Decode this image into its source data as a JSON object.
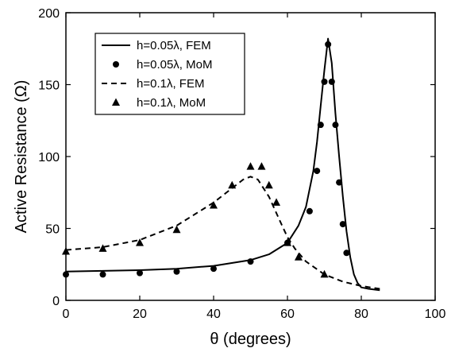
{
  "chart_data": {
    "type": "line",
    "title": "",
    "xlabel": "θ (degrees)",
    "ylabel": "Active Resistance (Ω)",
    "xlim": [
      0,
      100
    ],
    "ylim": [
      0,
      200
    ],
    "xticks": [
      0,
      20,
      40,
      60,
      80,
      100
    ],
    "yticks": [
      0,
      50,
      100,
      150,
      200
    ],
    "grid": false,
    "legend_position": "top-left",
    "series": [
      {
        "name": "h=0.05λ, FEM",
        "style": "solid-line",
        "x": [
          0,
          10,
          20,
          30,
          40,
          50,
          55,
          60,
          63,
          65,
          67,
          68,
          69,
          70,
          71,
          72,
          73,
          74,
          75,
          76,
          77,
          78,
          79,
          80,
          82,
          85
        ],
        "y": [
          20,
          20.5,
          21,
          22,
          24,
          28,
          32,
          40,
          52,
          65,
          90,
          110,
          135,
          160,
          182,
          165,
          130,
          100,
          72,
          48,
          30,
          18,
          12,
          9,
          8,
          7
        ]
      },
      {
        "name": "h=0.05λ, MoM",
        "style": "circle-marker",
        "x": [
          0,
          10,
          20,
          30,
          40,
          50,
          60,
          66,
          68,
          69,
          70,
          71,
          72,
          73,
          74,
          75,
          76
        ],
        "y": [
          18,
          18,
          19,
          20,
          22,
          27,
          40,
          62,
          90,
          122,
          152,
          178,
          152,
          122,
          82,
          53,
          33
        ]
      },
      {
        "name": "h=0.1λ, FEM",
        "style": "dashed-line",
        "x": [
          0,
          10,
          20,
          30,
          35,
          40,
          45,
          48,
          50,
          52,
          55,
          58,
          60,
          62,
          65,
          70,
          75,
          80,
          85
        ],
        "y": [
          35,
          37,
          42,
          52,
          60,
          68,
          78,
          84,
          86,
          84,
          72,
          55,
          44,
          36,
          27,
          18,
          13,
          10,
          8
        ]
      },
      {
        "name": "h=0.1λ, MoM",
        "style": "triangle-marker",
        "x": [
          0,
          10,
          20,
          30,
          40,
          45,
          50,
          53,
          55,
          57,
          60,
          63,
          70
        ],
        "y": [
          34,
          36,
          40,
          49,
          66,
          80,
          93,
          93,
          80,
          68,
          40,
          30,
          18
        ]
      }
    ]
  }
}
